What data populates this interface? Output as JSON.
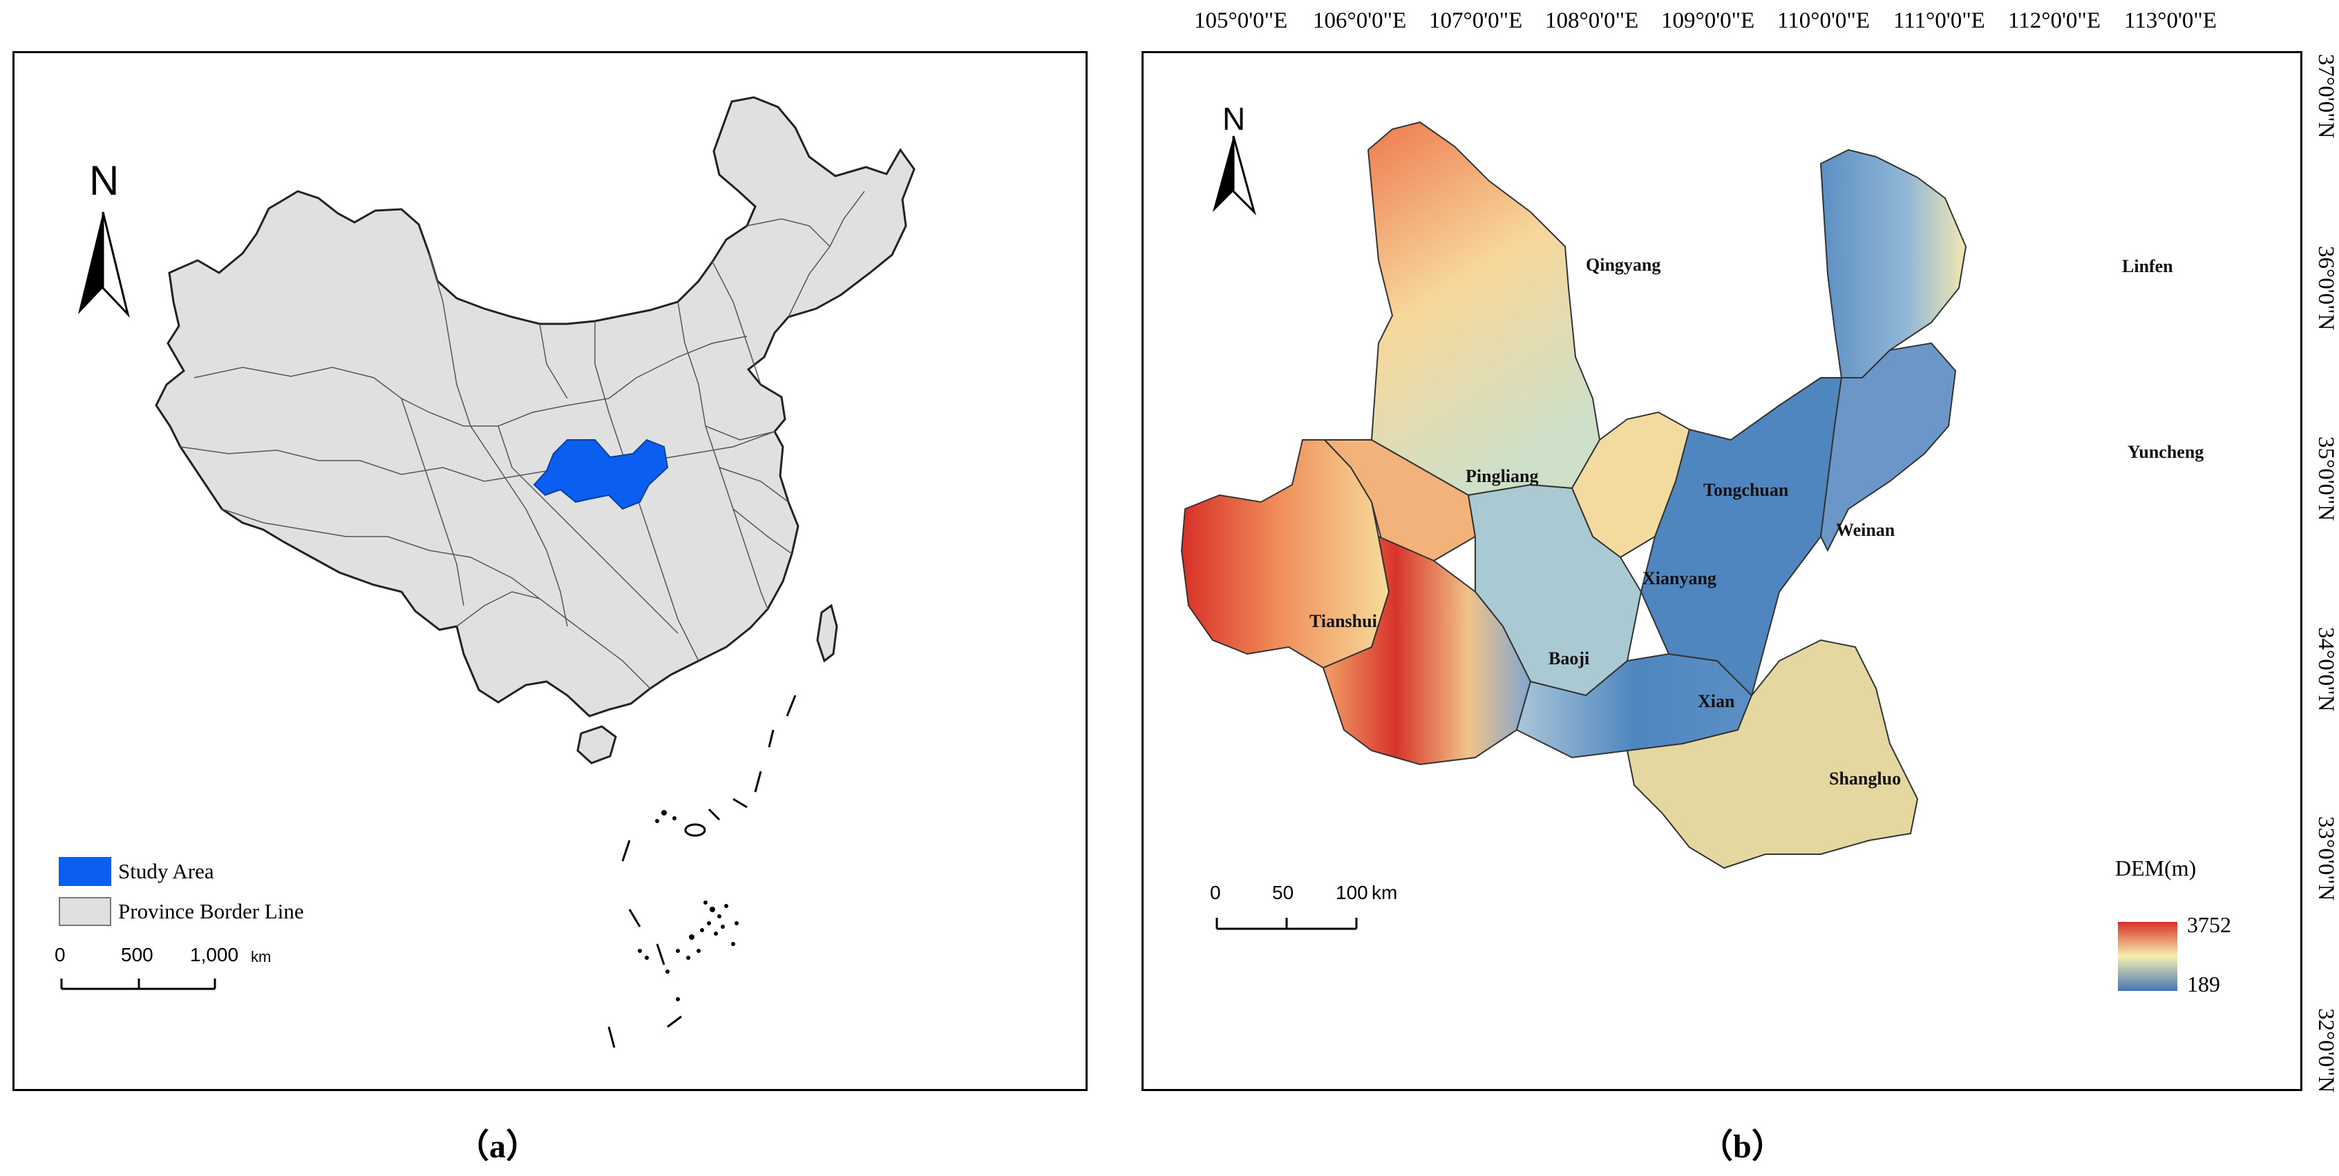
{
  "panel_a": {
    "north_label": "N",
    "legend": [
      {
        "label": "Study Area",
        "color": "#0a5ff0"
      },
      {
        "label": "Province Border Line",
        "color": "#e0e0e0"
      }
    ],
    "scale": {
      "ticks": [
        "0",
        "500",
        "1,000"
      ],
      "unit": "km"
    },
    "caption": "（a）"
  },
  "panel_b": {
    "north_label": "N",
    "lon_ticks": [
      "105°0'0\"E",
      "106°0'0\"E",
      "107°0'0\"E",
      "108°0'0\"E",
      "109°0'0\"E",
      "110°0'0\"E",
      "111°0'0\"E",
      "112°0'0\"E",
      "113°0'0\"E"
    ],
    "lat_ticks": [
      "37°0'0\"N",
      "36°0'0\"N",
      "35°0'0\"N",
      "34°0'0\"N",
      "33°0'0\"N",
      "32°0'0\"N"
    ],
    "cities": [
      "Qingyang",
      "Linfen",
      "Yuncheng",
      "Pingliang",
      "Tongchuan",
      "Weinan",
      "Xianyang",
      "Tianshui",
      "Baoji",
      "Xian",
      "Shangluo"
    ],
    "dem": {
      "title": "DEM(m)",
      "max": "3752",
      "min": "189",
      "colors": {
        "high": "#d73027",
        "mid": "#f7efb0",
        "low": "#4575b4"
      }
    },
    "scale": {
      "ticks": [
        "0",
        "50",
        "100"
      ],
      "unit": "km"
    },
    "caption": "（b）"
  }
}
